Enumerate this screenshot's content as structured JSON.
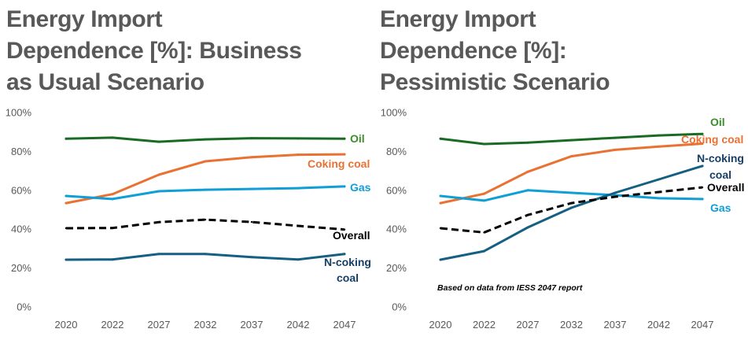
{
  "chart_data": [
    {
      "type": "line",
      "title": "Energy Import\nDependence [%]: Business\nas Usual Scenario",
      "categories": [
        "2020",
        "2022",
        "2027",
        "2032",
        "2037",
        "2042",
        "2047"
      ],
      "ylim": [
        0,
        100
      ],
      "yticks": [
        0,
        20,
        40,
        60,
        80,
        100
      ],
      "ytick_labels": [
        "0%",
        "20%",
        "40%",
        "60%",
        "80%",
        "100%"
      ],
      "grid": false,
      "series": [
        {
          "name": "Oil",
          "color": "#196B24",
          "label_color": "#3B8E2A",
          "dashed": false,
          "values": [
            86.5,
            87.1,
            85.0,
            86.2,
            86.8,
            86.7,
            86.5
          ]
        },
        {
          "name": "Coking coal",
          "color": "#E97132",
          "label_color": "#E97132",
          "dashed": false,
          "values": [
            53.4,
            58.0,
            68.0,
            74.9,
            77.0,
            78.3,
            78.5
          ]
        },
        {
          "name": "Gas",
          "color": "#0F9ED5",
          "label_color": "#0F9ED5",
          "dashed": false,
          "values": [
            57.1,
            55.5,
            59.5,
            60.3,
            60.7,
            61.1,
            62.0
          ]
        },
        {
          "name": "N-coking coal",
          "color": "#156082",
          "label_color": "#163F66",
          "dashed": false,
          "values": [
            24.3,
            24.4,
            27.2,
            27.2,
            25.6,
            24.4,
            27.2
          ]
        },
        {
          "name": "Overall",
          "color": "#000000",
          "label_color": "#000000",
          "dashed": true,
          "values": [
            40.5,
            40.6,
            43.6,
            44.9,
            43.7,
            41.7,
            39.8
          ]
        }
      ]
    },
    {
      "type": "line",
      "title": "Energy Import\nDependence [%]:\nPessimistic Scenario",
      "categories": [
        "2020",
        "2022",
        "2027",
        "2032",
        "2037",
        "2042",
        "2047"
      ],
      "ylim": [
        0,
        100
      ],
      "yticks": [
        0,
        20,
        40,
        60,
        80,
        100
      ],
      "ytick_labels": [
        "0%",
        "20%",
        "40%",
        "60%",
        "80%",
        "100%"
      ],
      "grid": false,
      "series": [
        {
          "name": "Oil",
          "color": "#196B24",
          "label_color": "#3B8E2A",
          "dashed": false,
          "values": [
            86.5,
            83.8,
            84.5,
            85.8,
            87.0,
            88.2,
            89.0
          ]
        },
        {
          "name": "Coking coal",
          "color": "#E97132",
          "label_color": "#E97132",
          "dashed": false,
          "values": [
            53.4,
            58.2,
            69.5,
            77.5,
            80.8,
            82.5,
            84.0
          ]
        },
        {
          "name": "Gas",
          "color": "#0F9ED5",
          "label_color": "#0F9ED5",
          "dashed": false,
          "values": [
            57.1,
            54.7,
            60.0,
            58.7,
            57.5,
            55.9,
            55.5
          ]
        },
        {
          "name": "N-coking coal",
          "color": "#156082",
          "label_color": "#163F66",
          "dashed": false,
          "values": [
            24.3,
            28.7,
            40.9,
            51.0,
            58.7,
            65.6,
            72.5
          ]
        },
        {
          "name": "Overall",
          "color": "#000000",
          "label_color": "#000000",
          "dashed": true,
          "values": [
            40.5,
            38.3,
            47.3,
            53.4,
            56.7,
            59.1,
            61.5
          ]
        }
      ],
      "annotations": [
        "Based on data from IESS 2047 report"
      ]
    }
  ]
}
